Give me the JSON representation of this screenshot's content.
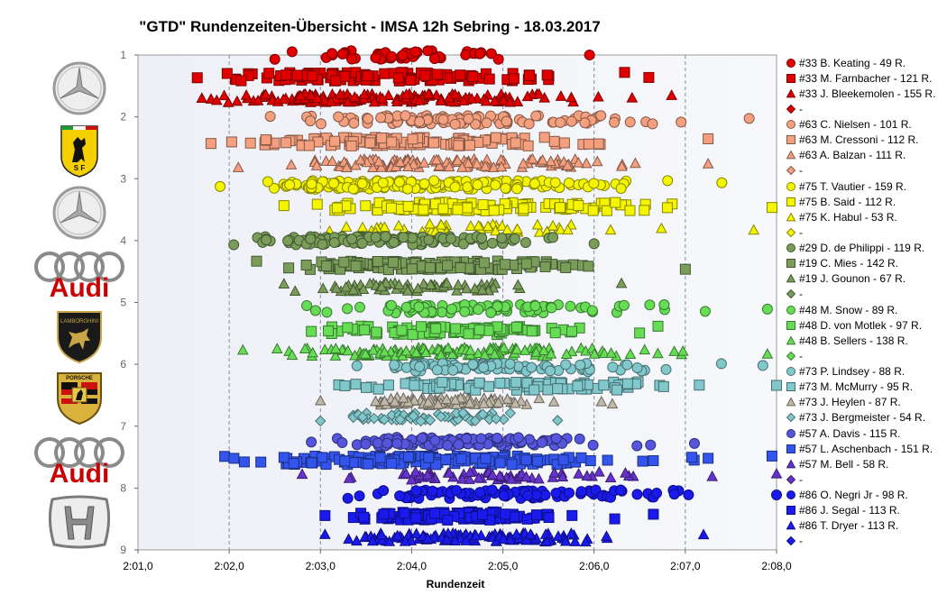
{
  "title": "\"GTD\" Rundenzeiten-Übersicht  - IMSA 12h Sebring  - 18.03.2017",
  "logos": [
    {
      "name": "mercedes-logo",
      "brand": "Mercedes-Benz"
    },
    {
      "name": "ferrari-logo",
      "brand": "Ferrari"
    },
    {
      "name": "mercedes-logo",
      "brand": "Mercedes-Benz"
    },
    {
      "name": "audi-logo",
      "brand": "Audi",
      "text": "Audi"
    },
    {
      "name": "lamborghini-logo",
      "brand": "Lamborghini",
      "text": "LAMBORGHINI"
    },
    {
      "name": "porsche-logo",
      "brand": "Porsche",
      "text": "PORSCHE"
    },
    {
      "name": "audi-logo",
      "brand": "Audi",
      "text": "Audi"
    },
    {
      "name": "honda-logo",
      "brand": "Honda"
    }
  ],
  "chart_data": {
    "type": "scatter",
    "title": "\"GTD\" Rundenzeiten-Übersicht  - IMSA 12h Sebring  - 18.03.2017",
    "xlabel": "Rundenzeit",
    "ylabel": "",
    "x_ticks": [
      "2:01,0",
      "2:02,0",
      "2:03,0",
      "2:04,0",
      "2:05,0",
      "2:06,0",
      "2:07,0",
      "2:08,0"
    ],
    "xlim": [
      121.0,
      128.0
    ],
    "y_ticks": [
      "1",
      "2",
      "3",
      "4",
      "5",
      "6",
      "7",
      "8",
      "9"
    ],
    "ylim": [
      1,
      9
    ],
    "y_inverted": true,
    "grid": "vertical dashed",
    "legend_position": "right",
    "series": [
      {
        "name": "#33 B. Keating - 49 R.",
        "y": 1.0,
        "marker": "circle",
        "color": "#e00000",
        "laps": 49,
        "x_range": [
          122.5,
          125.95
        ]
      },
      {
        "name": "#33 M. Farnbacher - 121 R.",
        "y": 1.35,
        "marker": "square",
        "color": "#e00000",
        "laps": 121,
        "x_range": [
          121.65,
          126.6
        ]
      },
      {
        "name": "#33 J. Bleekemolen - 155 R.",
        "y": 1.7,
        "marker": "triangle",
        "color": "#e00000",
        "laps": 155,
        "x_range": [
          121.7,
          126.85
        ]
      },
      {
        "name": "-",
        "y": null,
        "marker": "diamond",
        "color": "#e00000"
      },
      {
        "name": "#63 C. Nielsen - 101 R.",
        "y": 2.05,
        "marker": "circle",
        "color": "#f4a07f",
        "laps": 101,
        "x_range": [
          122.45,
          127.7
        ]
      },
      {
        "name": "#63 M. Cressoni - 112 R.",
        "y": 2.4,
        "marker": "square",
        "color": "#f4a07f",
        "laps": 112,
        "x_range": [
          121.8,
          127.25
        ]
      },
      {
        "name": "#63 A. Balzan - 111 R.",
        "y": 2.75,
        "marker": "triangle",
        "color": "#f4a07f",
        "laps": 111,
        "x_range": [
          122.1,
          127.25
        ]
      },
      {
        "name": "-",
        "y": null,
        "marker": "diamond",
        "color": "#f4a07f"
      },
      {
        "name": "#75 T. Vautier - 159 R.",
        "y": 3.1,
        "marker": "circle",
        "color": "#f5f500",
        "laps": 159,
        "x_range": [
          121.9,
          127.4
        ]
      },
      {
        "name": "#75 B. Said - 112 R.",
        "y": 3.45,
        "marker": "square",
        "color": "#f5f500",
        "laps": 112,
        "x_range": [
          122.6,
          127.95
        ]
      },
      {
        "name": "#75 K. Habul - 53 R.",
        "y": 3.8,
        "marker": "triangle",
        "color": "#f5f500",
        "laps": 53,
        "x_range": [
          123.1,
          127.75
        ]
      },
      {
        "name": "-",
        "y": null,
        "marker": "diamond",
        "color": "#f5f500"
      },
      {
        "name": "#29 D. de Philippi - 119 R.",
        "y": 4.0,
        "marker": "circle",
        "color": "#7a9e5a",
        "laps": 119,
        "x_range": [
          122.05,
          126.0
        ]
      },
      {
        "name": "#19 C. Mies - 142 R.",
        "y": 4.4,
        "marker": "square",
        "color": "#7a9e5a",
        "laps": 142,
        "x_range": [
          122.3,
          127.0
        ]
      },
      {
        "name": "#19 J. Gounon - 67 R.",
        "y": 4.75,
        "marker": "triangle",
        "color": "#7a9e5a",
        "laps": 67,
        "x_range": [
          122.6,
          126.3
        ]
      },
      {
        "name": "-",
        "y": null,
        "marker": "diamond",
        "color": "#7a9e5a"
      },
      {
        "name": "#48 M. Snow - 89 R.",
        "y": 5.1,
        "marker": "circle",
        "color": "#66dd55",
        "laps": 89,
        "x_range": [
          122.85,
          127.9
        ]
      },
      {
        "name": "#48 D. von Motlek - 97 R.",
        "y": 5.45,
        "marker": "square",
        "color": "#66dd55",
        "laps": 97,
        "x_range": [
          122.9,
          126.7
        ]
      },
      {
        "name": "#48 B. Sellers - 138 R.",
        "y": 5.8,
        "marker": "triangle",
        "color": "#66dd55",
        "laps": 138,
        "x_range": [
          122.15,
          127.9
        ]
      },
      {
        "name": "-",
        "y": null,
        "marker": "diamond",
        "color": "#66dd55"
      },
      {
        "name": "#73 P. Lindsey - 88 R.",
        "y": 6.05,
        "marker": "circle",
        "color": "#80c8cc",
        "laps": 88,
        "x_range": [
          123.4,
          127.85
        ]
      },
      {
        "name": "#73 M. McMurry - 95 R.",
        "y": 6.35,
        "marker": "square",
        "color": "#80c8cc",
        "laps": 95,
        "x_range": [
          123.2,
          128.0
        ]
      },
      {
        "name": "#73 J. Heylen - 87 R.",
        "y": 6.6,
        "marker": "triangle",
        "color": "#c0b8a8",
        "laps": 87,
        "x_range": [
          123.0,
          126.2
        ]
      },
      {
        "name": "#73 J. Bergmeister - 54 R.",
        "y": 6.85,
        "marker": "diamond",
        "color": "#80c8cc",
        "laps": 54,
        "x_range": [
          123.0,
          125.6
        ]
      },
      {
        "name": "#57 A. Davis - 115 R.",
        "y": 7.25,
        "marker": "circle",
        "color": "#5555dd",
        "laps": 115,
        "x_range": [
          122.9,
          127.1
        ]
      },
      {
        "name": "#57 L. Aschenbach - 151 R.",
        "y": 7.55,
        "marker": "square",
        "color": "#3355ee",
        "laps": 151,
        "x_range": [
          121.95,
          127.95
        ]
      },
      {
        "name": "#57 M. Bell - 58 R.",
        "y": 7.8,
        "marker": "triangle",
        "color": "#6633cc",
        "laps": 58,
        "x_range": [
          122.8,
          128.0
        ]
      },
      {
        "name": "-",
        "y": null,
        "marker": "diamond",
        "color": "#6633cc"
      },
      {
        "name": "#86 O. Negri Jr - 98 R.",
        "y": 8.1,
        "marker": "circle",
        "color": "#1a1aee",
        "laps": 98,
        "x_range": [
          123.3,
          128.0
        ]
      },
      {
        "name": "#86 J. Segal - 113 R.",
        "y": 8.45,
        "marker": "square",
        "color": "#1a1aee",
        "laps": 113,
        "x_range": [
          123.05,
          126.65
        ]
      },
      {
        "name": "#86 T. Dryer - 113 R.",
        "y": 8.8,
        "marker": "triangle",
        "color": "#1a1aee",
        "laps": 113,
        "x_range": [
          123.05,
          127.2
        ]
      },
      {
        "name": "-",
        "y": null,
        "marker": "diamond",
        "color": "#1a1aee"
      }
    ]
  }
}
